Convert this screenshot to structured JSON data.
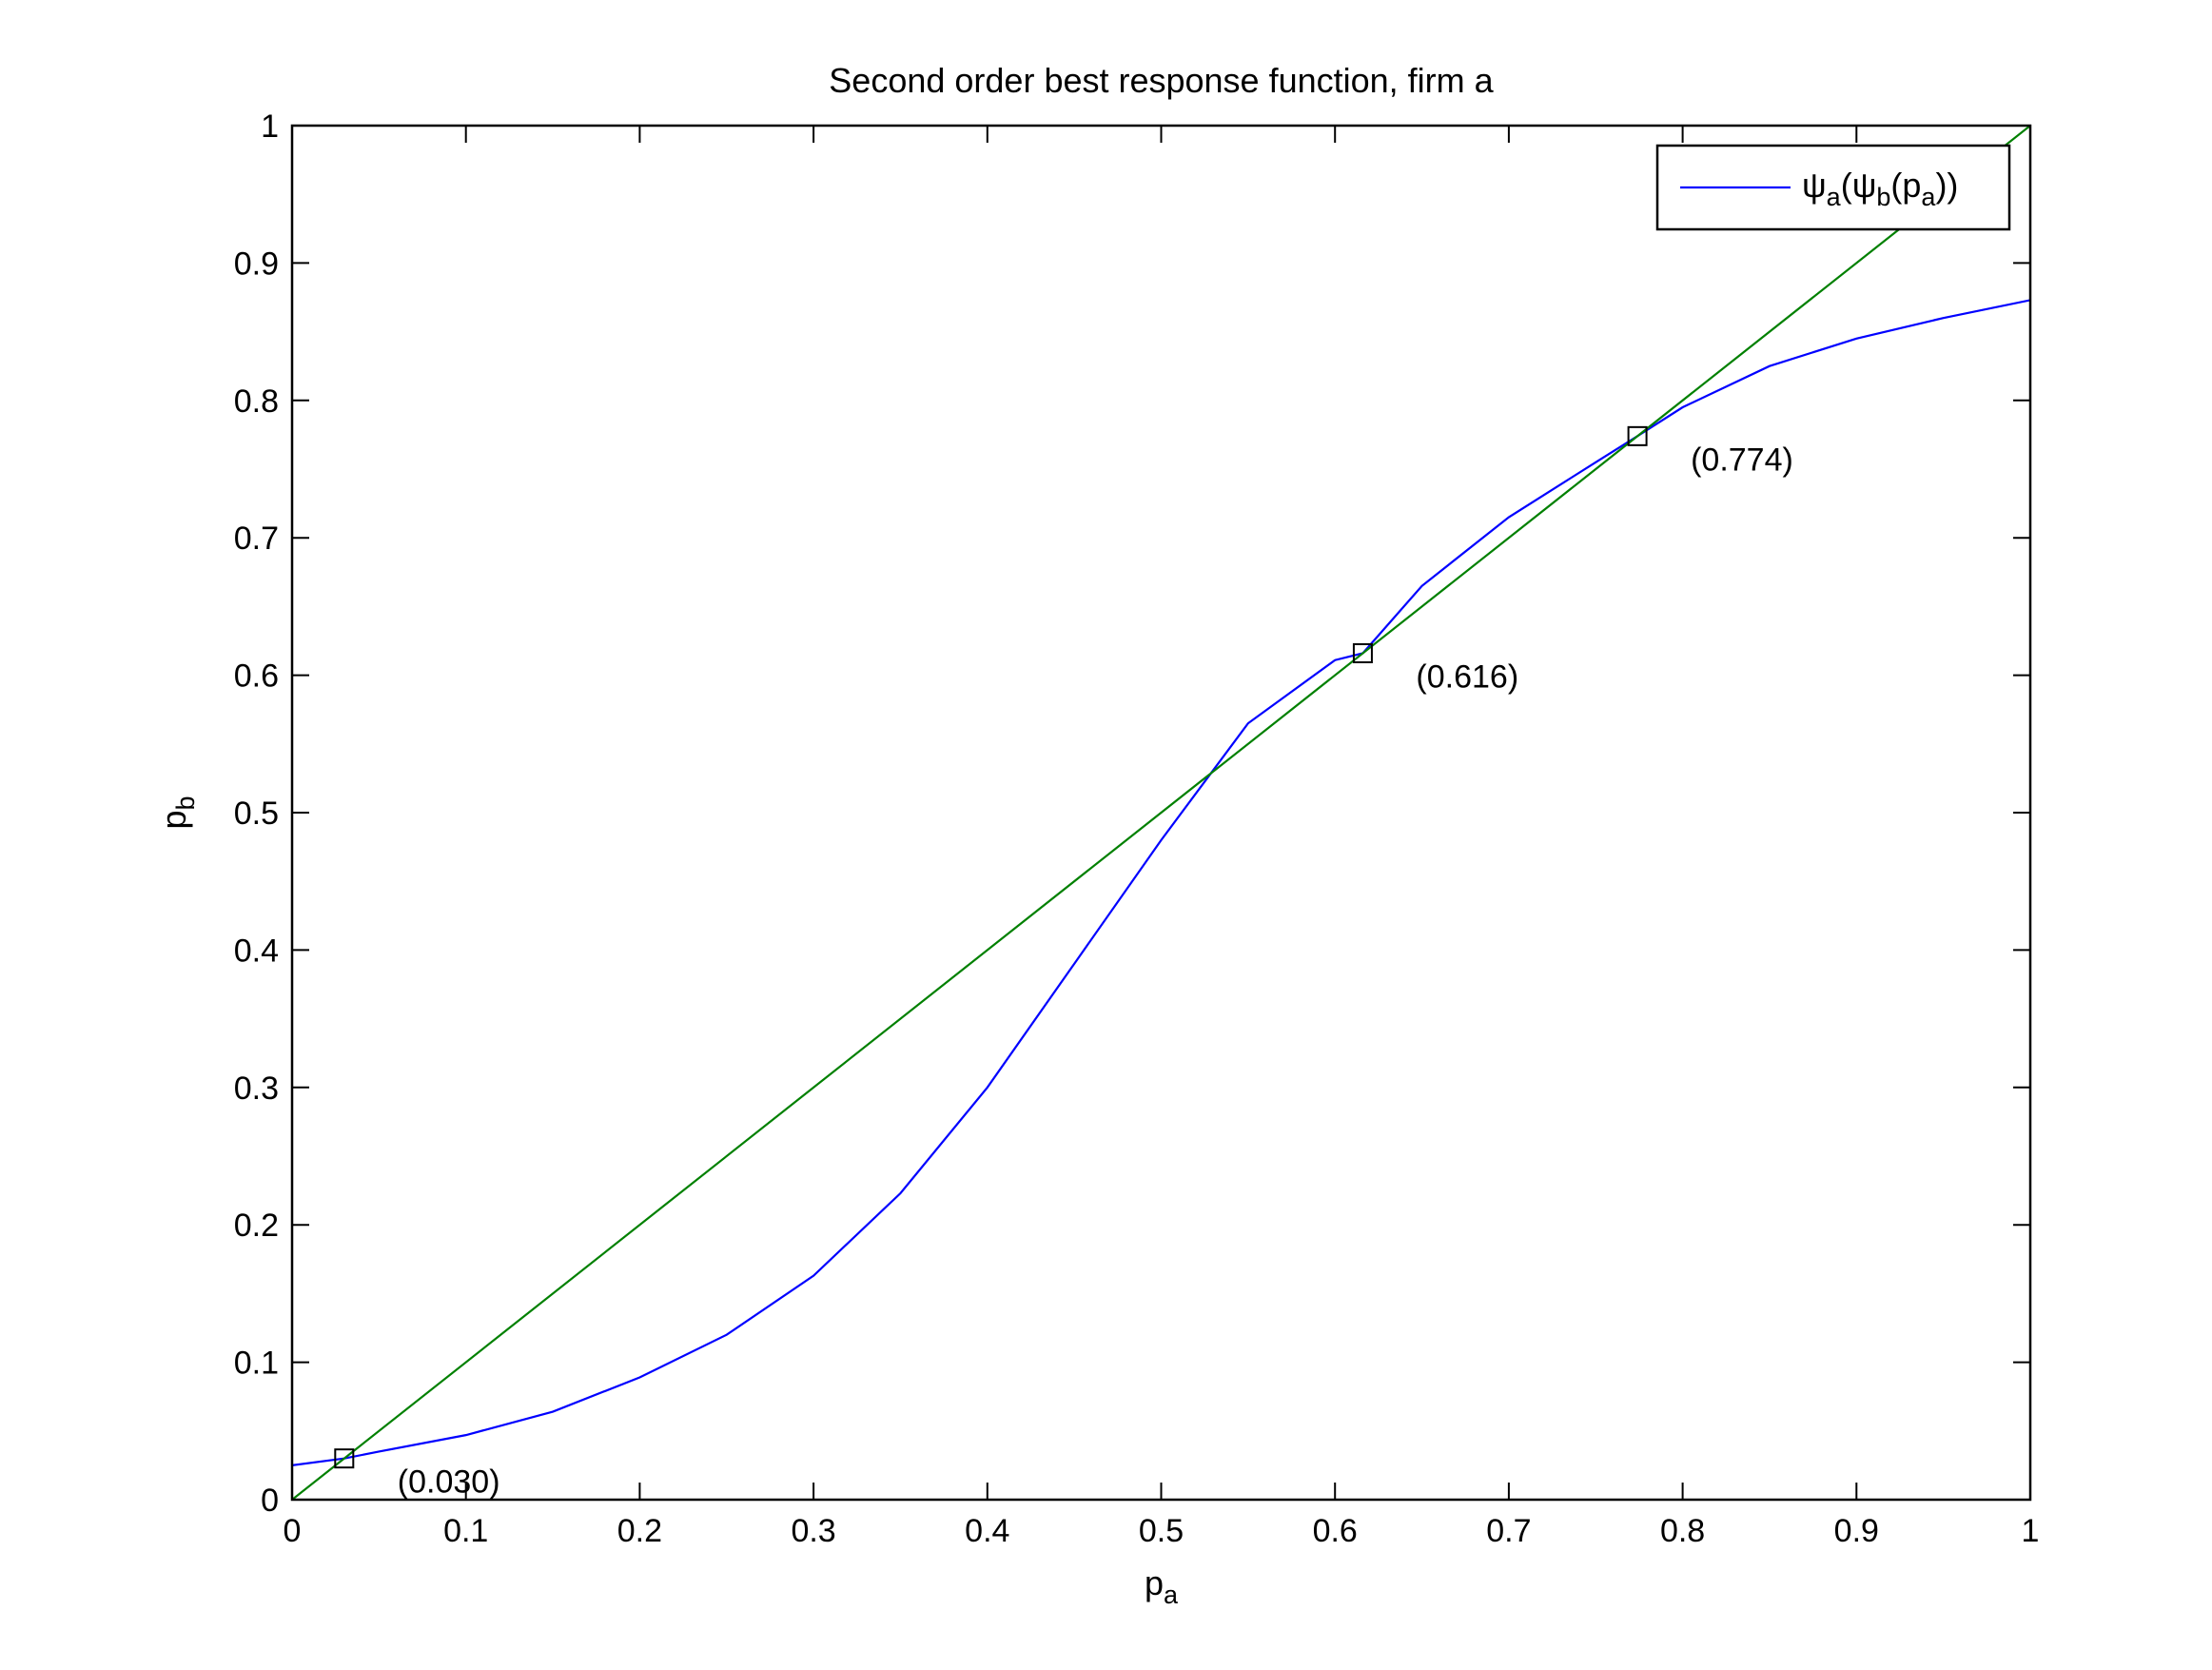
{
  "chart_data": {
    "type": "line",
    "title": "Second order best response function, firm a",
    "xlabel": {
      "main": "p",
      "sub": "a"
    },
    "ylabel": {
      "main": "p",
      "sub": "b"
    },
    "xlim": [
      0,
      1
    ],
    "ylim": [
      0,
      1
    ],
    "x_ticks": [
      "0",
      "0.1",
      "0.2",
      "0.3",
      "0.4",
      "0.5",
      "0.6",
      "0.7",
      "0.8",
      "0.9",
      "1"
    ],
    "y_ticks": [
      "0",
      "0.1",
      "0.2",
      "0.3",
      "0.4",
      "0.5",
      "0.6",
      "0.7",
      "0.8",
      "0.9",
      "1"
    ],
    "grid": false,
    "legend": {
      "position": "top-right",
      "entries": [
        {
          "series": "psi",
          "label_parts": [
            "ψ",
            "a",
            "(ψ",
            "b",
            "(p",
            "a",
            "))"
          ]
        }
      ]
    },
    "series": [
      {
        "id": "psi",
        "color": "#0000ff",
        "x": [
          0,
          0.03,
          0.05,
          0.1,
          0.15,
          0.2,
          0.25,
          0.3,
          0.35,
          0.4,
          0.45,
          0.5,
          0.55,
          0.6,
          0.616,
          0.65,
          0.7,
          0.75,
          0.774,
          0.8,
          0.85,
          0.9,
          0.95,
          1
        ],
        "y": [
          0.025,
          0.03,
          0.035,
          0.047,
          0.064,
          0.089,
          0.12,
          0.163,
          0.223,
          0.3,
          0.39,
          0.48,
          0.565,
          0.611,
          0.616,
          0.665,
          0.715,
          0.755,
          0.774,
          0.795,
          0.825,
          0.845,
          0.86,
          0.873
        ]
      },
      {
        "id": "diagonal",
        "color": "#008000",
        "x": [
          0,
          1
        ],
        "y": [
          0,
          1
        ]
      }
    ],
    "markers": [
      {
        "x": 0.03,
        "y": 0.03,
        "label": "(0.030)"
      },
      {
        "x": 0.616,
        "y": 0.616,
        "label": "(0.616)"
      },
      {
        "x": 0.774,
        "y": 0.774,
        "label": "(0.774)"
      }
    ]
  }
}
